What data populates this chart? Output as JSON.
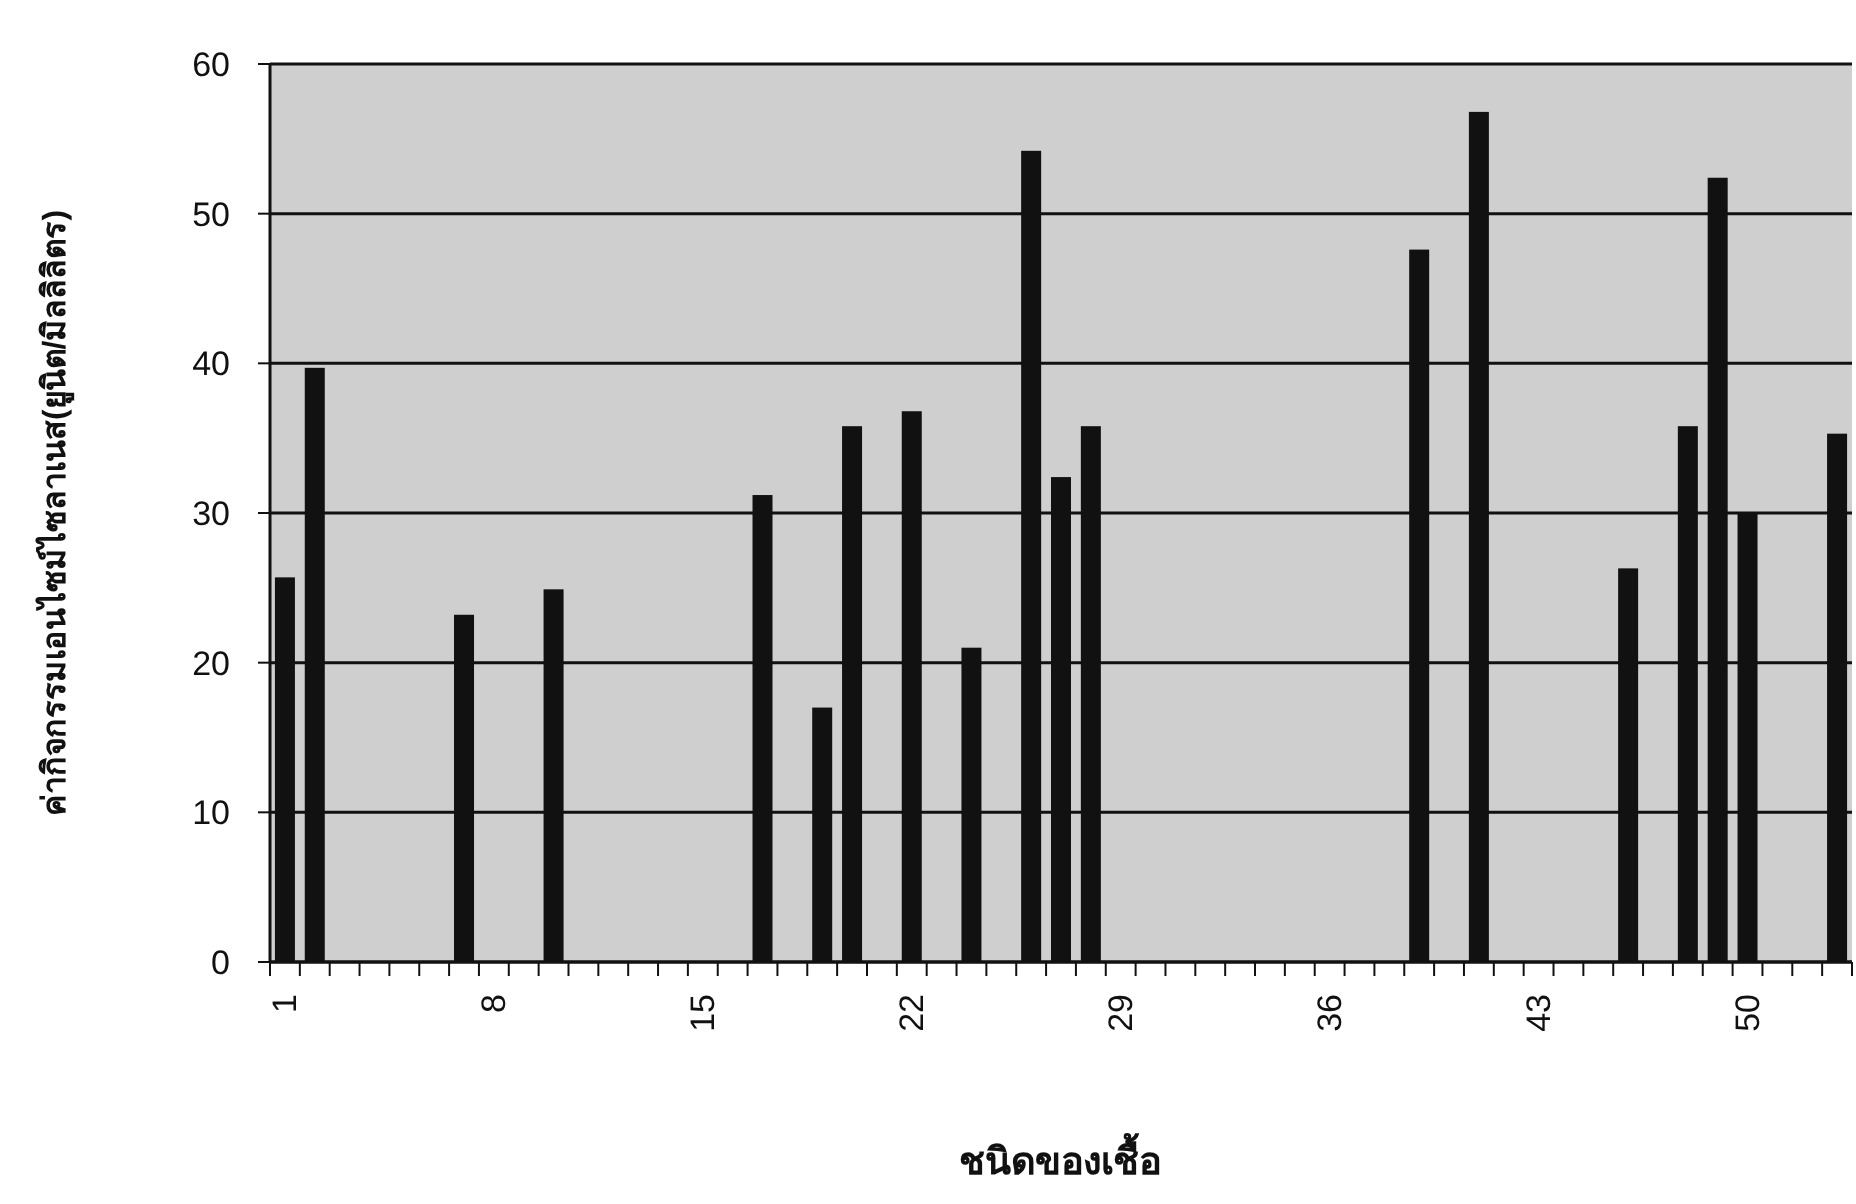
{
  "chart_data": {
    "type": "bar",
    "xlabel": "ชนิดของเชื้อ",
    "ylabel": "ค่ากิจกรรมเอนไซม์ไซลาเนส(ยูนิต/มิลลิลิตร)",
    "categories": [
      "1",
      null,
      null,
      null,
      null,
      null,
      null,
      "8",
      null,
      null,
      null,
      null,
      null,
      null,
      "15",
      null,
      null,
      null,
      null,
      null,
      null,
      "22",
      null,
      null,
      null,
      null,
      null,
      null,
      "29",
      null,
      null,
      null,
      null,
      null,
      null,
      "36",
      null,
      null,
      null,
      null,
      null,
      null,
      "43",
      null,
      null,
      null,
      null,
      null,
      null,
      "50",
      null,
      null,
      null
    ],
    "values": [
      25.7,
      39.7,
      null,
      null,
      null,
      null,
      23.2,
      null,
      null,
      24.9,
      null,
      null,
      null,
      null,
      null,
      null,
      31.2,
      null,
      17.0,
      35.8,
      null,
      36.8,
      null,
      21.0,
      null,
      54.2,
      32.4,
      35.8,
      null,
      null,
      null,
      null,
      null,
      null,
      null,
      null,
      null,
      null,
      47.6,
      null,
      56.8,
      null,
      null,
      null,
      null,
      26.3,
      null,
      35.8,
      52.4,
      30.0,
      null,
      null,
      35.3
    ],
    "color": "#111111",
    "ylim": [
      0,
      60
    ],
    "yticks": [
      0,
      10,
      20,
      30,
      40,
      50,
      60
    ],
    "grid": "y"
  }
}
